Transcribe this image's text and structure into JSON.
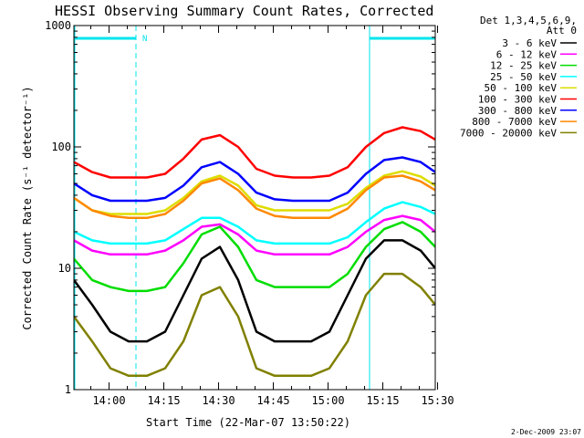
{
  "chart_data": {
    "type": "line",
    "title": "HESSI Observing Summary Count Rates, Corrected",
    "xlabel": "Start Time (22-Mar-07 13:50:22)",
    "ylabel": "Corrected Count Rate (s⁻¹ detector⁻¹)",
    "yscale": "log",
    "ylim": [
      1,
      1000
    ],
    "xlim_minutes": [
      0,
      99
    ],
    "xticks": [
      "14:00",
      "14:15",
      "14:30",
      "14:45",
      "15:00",
      "15:15",
      "15:30"
    ],
    "xtick_minutes": [
      9.63,
      24.63,
      39.63,
      54.63,
      69.63,
      84.63,
      99.63
    ],
    "yticks": [
      "1",
      "10",
      "100",
      "1000"
    ],
    "ytick_values": [
      1,
      10,
      100,
      1000
    ],
    "legend_header": [
      "Det 1,3,4,5,6,9,",
      "Att 0"
    ],
    "legend_position": "right, outside",
    "x_minutes": [
      0,
      5,
      10,
      15,
      20,
      25,
      30,
      35,
      40,
      45,
      50,
      55,
      60,
      65,
      70,
      75,
      80,
      85,
      90,
      95,
      99
    ],
    "series": [
      {
        "name": "3 - 6 keV",
        "color": "#000000",
        "values": [
          8,
          5,
          3,
          2.5,
          2.5,
          3,
          6,
          12,
          15,
          8,
          3,
          2.5,
          2.5,
          2.5,
          3,
          6,
          12,
          17,
          17,
          14,
          10
        ]
      },
      {
        "name": "6 - 12 keV",
        "color": "#ff00ff",
        "values": [
          17,
          14,
          13,
          13,
          13,
          14,
          17,
          22,
          23,
          19,
          14,
          13,
          13,
          13,
          13,
          15,
          20,
          25,
          27,
          25,
          20
        ]
      },
      {
        "name": "12 - 25 keV",
        "color": "#00dd00",
        "values": [
          12,
          8,
          7,
          6.5,
          6.5,
          7,
          11,
          19,
          22,
          15,
          8,
          7,
          7,
          7,
          7,
          9,
          15,
          21,
          24,
          20,
          15
        ]
      },
      {
        "name": "25 - 50 keV",
        "color": "#00ffff",
        "values": [
          20,
          17,
          16,
          16,
          16,
          17,
          21,
          26,
          26,
          22,
          17,
          16,
          16,
          16,
          16,
          18,
          24,
          31,
          35,
          32,
          28
        ]
      },
      {
        "name": "50 - 100 keV",
        "color": "#dddd00",
        "values": [
          38,
          30,
          28,
          28,
          28,
          30,
          38,
          52,
          58,
          48,
          33,
          30,
          30,
          30,
          30,
          34,
          46,
          58,
          63,
          57,
          48
        ]
      },
      {
        "name": "100 - 300 keV",
        "color": "#ff0000",
        "values": [
          75,
          62,
          56,
          56,
          56,
          60,
          80,
          115,
          125,
          100,
          66,
          58,
          56,
          56,
          58,
          68,
          100,
          130,
          145,
          135,
          115
        ]
      },
      {
        "name": "300 - 800 keV",
        "color": "#0000ff",
        "values": [
          50,
          40,
          36,
          36,
          36,
          38,
          48,
          68,
          75,
          60,
          42,
          37,
          36,
          36,
          36,
          42,
          60,
          78,
          82,
          75,
          62
        ]
      },
      {
        "name": "800 - 7000 keV",
        "color": "#ff8800",
        "values": [
          38,
          30,
          27,
          26,
          26,
          28,
          36,
          50,
          55,
          44,
          31,
          27,
          26,
          26,
          26,
          31,
          44,
          56,
          58,
          52,
          44
        ]
      },
      {
        "name": "7000 - 20000 keV",
        "color": "#808000",
        "values": [
          4,
          2.5,
          1.5,
          1.3,
          1.3,
          1.5,
          2.5,
          6,
          7,
          4,
          1.5,
          1.3,
          1.3,
          1.3,
          1.5,
          2.5,
          6,
          9,
          9,
          7,
          5
        ]
      }
    ],
    "annotations": {
      "saa_bars": [
        {
          "label": "N",
          "start_min": 0,
          "end_min": 17
        },
        {
          "label": "",
          "start_min": 81,
          "end_min": 99
        }
      ],
      "color": "#00e5ee",
      "label_text": "N"
    },
    "footer_stamp": "2-Dec-2009 23:07"
  }
}
